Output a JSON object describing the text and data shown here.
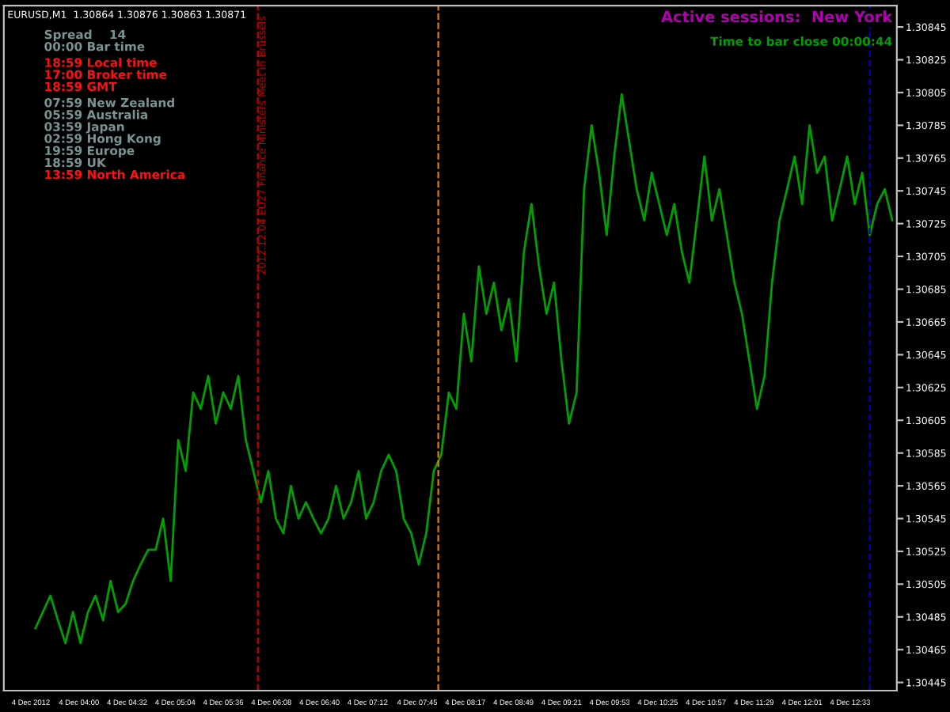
{
  "chart_data": {
    "type": "line",
    "x": [
      "2012-12-04T03:31",
      "2012-12-04T03:36",
      "2012-12-04T03:41",
      "2012-12-04T03:46",
      "2012-12-04T03:51",
      "2012-12-04T03:56",
      "2012-12-04T04:01",
      "2012-12-04T04:06",
      "2012-12-04T04:11",
      "2012-12-04T04:16",
      "2012-12-04T04:21",
      "2012-12-04T04:26",
      "2012-12-04T04:31",
      "2012-12-04T04:36",
      "2012-12-04T04:41",
      "2012-12-04T04:46",
      "2012-12-04T04:51",
      "2012-12-04T04:56",
      "2012-12-04T05:01",
      "2012-12-04T05:06",
      "2012-12-04T05:11",
      "2012-12-04T05:16",
      "2012-12-04T05:21",
      "2012-12-04T05:26",
      "2012-12-04T05:31",
      "2012-12-04T05:36",
      "2012-12-04T05:41",
      "2012-12-04T05:46",
      "2012-12-04T05:51",
      "2012-12-04T05:56",
      "2012-12-04T06:01",
      "2012-12-04T06:06",
      "2012-12-04T06:11",
      "2012-12-04T06:16",
      "2012-12-04T06:21",
      "2012-12-04T06:26",
      "2012-12-04T06:31",
      "2012-12-04T06:36",
      "2012-12-04T06:41",
      "2012-12-04T06:46",
      "2012-12-04T06:51",
      "2012-12-04T06:56",
      "2012-12-04T07:01",
      "2012-12-04T07:06",
      "2012-12-04T07:11",
      "2012-12-04T07:16",
      "2012-12-04T07:21",
      "2012-12-04T07:26",
      "2012-12-04T07:31",
      "2012-12-04T07:36",
      "2012-12-04T07:41",
      "2012-12-04T07:46",
      "2012-12-04T07:51",
      "2012-12-04T07:56",
      "2012-12-04T08:01",
      "2012-12-04T08:06",
      "2012-12-04T08:11",
      "2012-12-04T08:16",
      "2012-12-04T08:21",
      "2012-12-04T08:26",
      "2012-12-04T08:31",
      "2012-12-04T08:36",
      "2012-12-04T08:41",
      "2012-12-04T08:46",
      "2012-12-04T08:51",
      "2012-12-04T08:56",
      "2012-12-04T09:01",
      "2012-12-04T09:06",
      "2012-12-04T09:11",
      "2012-12-04T09:16",
      "2012-12-04T09:21",
      "2012-12-04T09:26",
      "2012-12-04T09:31",
      "2012-12-04T09:36",
      "2012-12-04T09:41",
      "2012-12-04T09:46",
      "2012-12-04T09:51",
      "2012-12-04T09:56",
      "2012-12-04T10:01",
      "2012-12-04T10:06",
      "2012-12-04T10:11",
      "2012-12-04T10:16",
      "2012-12-04T10:21",
      "2012-12-04T10:26",
      "2012-12-04T10:31",
      "2012-12-04T10:36",
      "2012-12-04T10:41",
      "2012-12-04T10:46",
      "2012-12-04T10:51",
      "2012-12-04T10:56",
      "2012-12-04T11:01",
      "2012-12-04T11:06",
      "2012-12-04T11:11",
      "2012-12-04T11:16",
      "2012-12-04T11:21",
      "2012-12-04T11:26",
      "2012-12-04T11:31",
      "2012-12-04T11:36",
      "2012-12-04T11:41",
      "2012-12-04T11:46",
      "2012-12-04T11:51",
      "2012-12-04T11:56",
      "2012-12-04T12:01",
      "2012-12-04T12:06",
      "2012-12-04T12:11",
      "2012-12-04T12:16",
      "2012-12-04T12:21",
      "2012-12-04T12:26",
      "2012-12-04T12:31",
      "2012-12-04T12:36",
      "2012-12-04T12:41",
      "2012-12-04T12:46",
      "2012-12-04T12:51",
      "2012-12-04T12:56",
      "2012-12-04T13:01"
    ],
    "series": [
      {
        "color": "#00a000",
        "values": [
          1.30478,
          1.30488,
          1.30498,
          1.30483,
          1.30469,
          1.30488,
          1.30469,
          1.30488,
          1.30498,
          1.30483,
          1.30507,
          1.30488,
          1.30493,
          1.30507,
          1.30517,
          1.30526,
          1.30526,
          1.30545,
          1.30507,
          1.30593,
          1.30574,
          1.30622,
          1.30612,
          1.30632,
          1.30603,
          1.30622,
          1.30612,
          1.30632,
          1.30593,
          1.30574,
          1.30555,
          1.30574,
          1.30545,
          1.30536,
          1.30565,
          1.30545,
          1.30555,
          1.30545,
          1.30536,
          1.30545,
          1.30565,
          1.30545,
          1.30555,
          1.30574,
          1.30545,
          1.30555,
          1.30574,
          1.30584,
          1.30574,
          1.30545,
          1.30536,
          1.30517,
          1.30536,
          1.30574,
          1.30584,
          1.30622,
          1.30612,
          1.3067,
          1.30641,
          1.30699,
          1.3067,
          1.30689,
          1.3066,
          1.30679,
          1.30641,
          1.30708,
          1.30737,
          1.30699,
          1.3067,
          1.30689,
          1.30641,
          1.30603,
          1.30622,
          1.30746,
          1.30785,
          1.30756,
          1.30718,
          1.30766,
          1.30804,
          1.30775,
          1.30746,
          1.30727,
          1.30756,
          1.30737,
          1.30718,
          1.30737,
          1.30708,
          1.30689,
          1.30727,
          1.30766,
          1.30727,
          1.30746,
          1.30718,
          1.30689,
          1.3067,
          1.30641,
          1.30612,
          1.30632,
          1.30689,
          1.30727,
          1.30746,
          1.30766,
          1.30737,
          1.30785,
          1.30756,
          1.30766,
          1.30727,
          1.30746,
          1.30766,
          1.30737,
          1.30756,
          1.30718,
          1.30737,
          1.30746,
          1.30727
        ]
      }
    ],
    "ylim": [
      1.3044,
      1.30858
    ],
    "yticks": [
      1.30445,
      1.30465,
      1.30485,
      1.30505,
      1.30525,
      1.30545,
      1.30565,
      1.30585,
      1.30605,
      1.30625,
      1.30645,
      1.30665,
      1.30685,
      1.30705,
      1.30725,
      1.30745,
      1.30765,
      1.30785,
      1.30805,
      1.30825,
      1.30845
    ],
    "xlim": [
      "2012-12-04T03:10",
      "2012-12-04T13:04"
    ],
    "xticks": [
      {
        "value": "2012-12-04T03:28",
        "label": "4 Dec 2012"
      },
      {
        "value": "2012-12-04T04:00",
        "label": "4 Dec 04:00"
      },
      {
        "value": "2012-12-04T04:32",
        "label": "4 Dec 04:32"
      },
      {
        "value": "2012-12-04T05:04",
        "label": "4 Dec 05:04"
      },
      {
        "value": "2012-12-04T05:36",
        "label": "4 Dec 05:36"
      },
      {
        "value": "2012-12-04T06:08",
        "label": "4 Dec 06:08"
      },
      {
        "value": "2012-12-04T06:40",
        "label": "4 Dec 06:40"
      },
      {
        "value": "2012-12-04T07:12",
        "label": "4 Dec 07:12"
      },
      {
        "value": "2012-12-04T07:45",
        "label": "4 Dec 07:45"
      },
      {
        "value": "2012-12-04T08:17",
        "label": "4 Dec 08:17"
      },
      {
        "value": "2012-12-04T08:49",
        "label": "4 Dec 08:49"
      },
      {
        "value": "2012-12-04T09:21",
        "label": "4 Dec 09:21"
      },
      {
        "value": "2012-12-04T09:53",
        "label": "4 Dec 09:53"
      },
      {
        "value": "2012-12-04T10:25",
        "label": "4 Dec 10:25"
      },
      {
        "value": "2012-12-04T10:57",
        "label": "4 Dec 10:57"
      },
      {
        "value": "2012-12-04T11:29",
        "label": "4 Dec 11:29"
      },
      {
        "value": "2012-12-04T12:01",
        "label": "4 Dec 12:01"
      },
      {
        "value": "2012-12-04T12:33",
        "label": "4 Dec 12:33"
      }
    ],
    "ref_lines": [
      {
        "axis": "x",
        "value": "2012-12-04T05:59",
        "label": "2012.12.04 EU27 Finance Ministers Meet in Brussels",
        "color": "#c00000",
        "line_style": "dashed"
      },
      {
        "axis": "x",
        "value": "2012-12-04T07:59",
        "color": "#e08000",
        "line_style": "dashed"
      },
      {
        "axis": "x",
        "value": "2012-12-04T12:46",
        "color": "#0000c0",
        "line_style": "dashed"
      }
    ],
    "annotations": [
      "EURUSD,M1  1.30864 1.30876 1.30863 1.30871",
      "Spread    14",
      "00:00 Bar time",
      "18:59 Local time",
      "17:00 Broker time",
      "18:59 GMT",
      "07:59 New Zealand",
      "05:59 Australia",
      "03:59 Japan",
      "02:59 Hong Kong",
      "19:59 Europe",
      "18:59 UK",
      "13:59 North America",
      "Active sessions:  New York",
      "Time to bar close 00:00:44"
    ],
    "grid": false,
    "legend": false,
    "marker": "none",
    "line_style": "solid"
  }
}
